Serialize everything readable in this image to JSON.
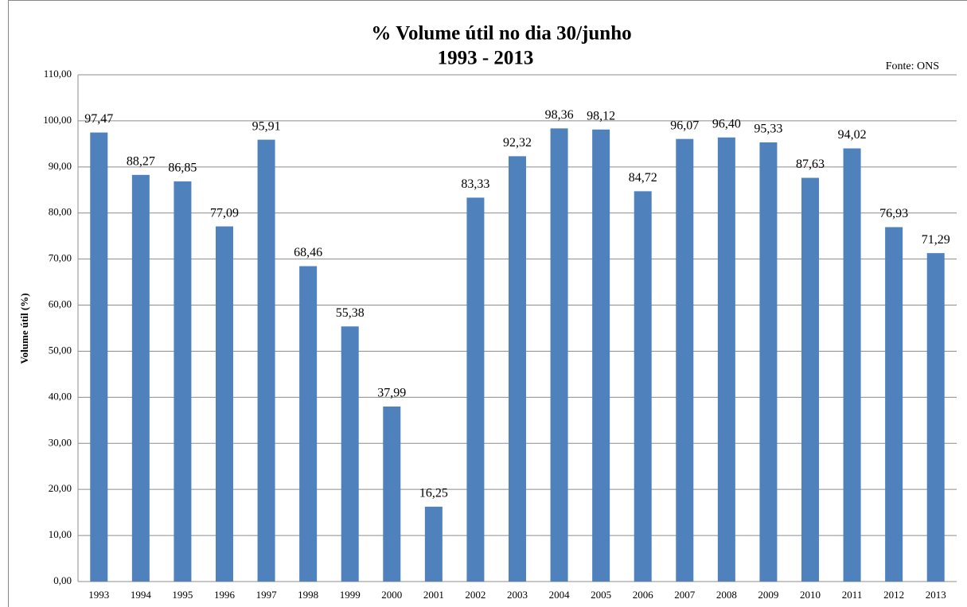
{
  "chart_data": {
    "type": "bar",
    "title": "% Volume útil no dia 30/junho",
    "subtitle": "1993 - 2013",
    "annotation": "Fonte: ONS",
    "y_label": "Volume útil (%)",
    "categories": [
      "1993",
      "1994",
      "1995",
      "1996",
      "1997",
      "1998",
      "1999",
      "2000",
      "2001",
      "2002",
      "2003",
      "2004",
      "2005",
      "2006",
      "2007",
      "2008",
      "2009",
      "2010",
      "2011",
      "2012",
      "2013"
    ],
    "values": [
      97.47,
      88.27,
      86.85,
      77.09,
      95.91,
      68.46,
      55.38,
      37.99,
      16.25,
      83.33,
      92.32,
      98.36,
      98.12,
      84.72,
      96.07,
      96.4,
      95.33,
      87.63,
      94.02,
      76.93,
      71.29
    ],
    "value_labels": [
      "97,47",
      "88,27",
      "86,85",
      "77,09",
      "95,91",
      "68,46",
      "55,38",
      "37,99",
      "16,25",
      "83,33",
      "92,32",
      "98,36",
      "98,12",
      "84,72",
      "96,07",
      "96,40",
      "95,33",
      "87,63",
      "94,02",
      "76,93",
      "71,29"
    ],
    "color": "#4f81bd",
    "ylim": [
      0,
      110
    ],
    "yticks": [
      {
        "value": 0,
        "label": "0,00"
      },
      {
        "value": 10,
        "label": "10,00"
      },
      {
        "value": 20,
        "label": "20,00"
      },
      {
        "value": 30,
        "label": "30,00"
      },
      {
        "value": 40,
        "label": "40,00"
      },
      {
        "value": 50,
        "label": "50,00"
      },
      {
        "value": 60,
        "label": "60,00"
      },
      {
        "value": 70,
        "label": "70,00"
      },
      {
        "value": 80,
        "label": "80,00"
      },
      {
        "value": 90,
        "label": "90,00"
      },
      {
        "value": 100,
        "label": "100,00"
      },
      {
        "value": 110,
        "label": "110,00"
      }
    ],
    "grid": true
  }
}
